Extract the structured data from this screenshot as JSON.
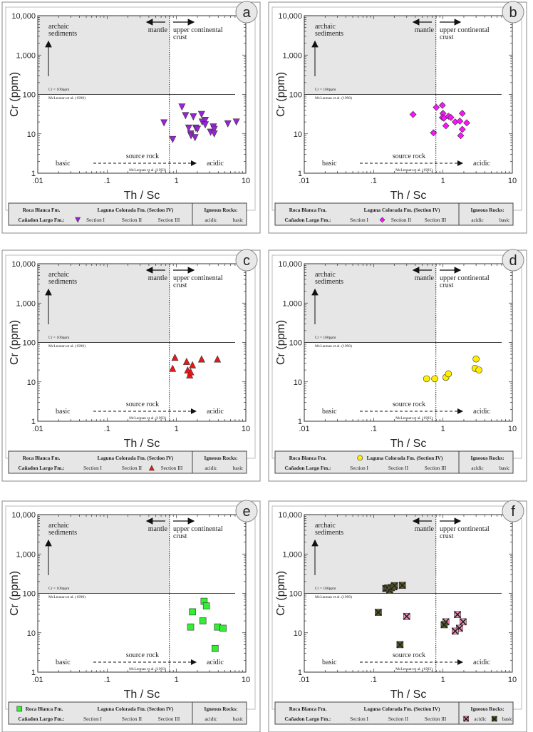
{
  "common": {
    "xlabel": "Th / Sc",
    "ylabel": "Cr (ppm)",
    "xticks": [
      ".01",
      ".1",
      "1",
      "10"
    ],
    "yticks": [
      "1",
      "10",
      "100",
      "1,000",
      "10,000"
    ],
    "archaic_1": "archaic",
    "archaic_2": "sediments",
    "mantle": "mantle",
    "ucc_1": "upper continental",
    "ucc_2": "crust",
    "cr_line": "Cr =  100ppm",
    "ref_1990": "McLennan et al. (1990)",
    "source_rock": "source rock",
    "basic": "basic",
    "acidic": "acidic",
    "ref_1993": "McLennan et al. (1993)",
    "legend": {
      "roca_blanca": "Roca Blanca Fm.",
      "laguna_colorada": "Laguna Colorada Fm. (Section IV)",
      "igneous": "Igneous Rocks:",
      "canadon_largo": "Cañadon Largo Fm.:",
      "section_i": "Section I",
      "section_ii": "Section II",
      "section_iii": "Section III",
      "acidic": "acidic",
      "basic": "basic"
    }
  },
  "chart_data": [
    {
      "type": "scatter",
      "panel": "a",
      "title": "",
      "xlabel": "Th / Sc",
      "ylabel": "Cr (ppm)",
      "xscale": "log",
      "yscale": "log",
      "xlim": [
        0.01,
        10
      ],
      "ylim": [
        1,
        10000
      ],
      "series": [
        {
          "name": "Section I",
          "legend_key": "section_i",
          "marker": "triangle-down",
          "color": "#9a22d8",
          "points": [
            [
              0.66,
              19
            ],
            [
              0.88,
              7.2
            ],
            [
              1.2,
              48
            ],
            [
              1.35,
              29
            ],
            [
              1.5,
              14
            ],
            [
              1.6,
              10
            ],
            [
              1.62,
              9
            ],
            [
              1.75,
              27
            ],
            [
              1.85,
              8
            ],
            [
              1.9,
              14
            ],
            [
              2.0,
              13
            ],
            [
              2.3,
              31
            ],
            [
              2.35,
              20
            ],
            [
              2.6,
              22
            ],
            [
              2.6,
              17
            ],
            [
              3.1,
              11
            ],
            [
              3.4,
              15
            ],
            [
              3.5,
              13
            ],
            [
              3.5,
              10
            ],
            [
              5.5,
              18
            ],
            [
              7.3,
              20
            ]
          ]
        }
      ]
    },
    {
      "type": "scatter",
      "panel": "b",
      "title": "",
      "xlabel": "Th / Sc",
      "ylabel": "Cr (ppm)",
      "xscale": "log",
      "yscale": "log",
      "xlim": [
        0.01,
        10
      ],
      "ylim": [
        1,
        10000
      ],
      "series": [
        {
          "name": "Section II",
          "legend_key": "section_ii",
          "marker": "diamond",
          "color": "#ff10ff",
          "points": [
            [
              0.37,
              31
            ],
            [
              0.73,
              10.6
            ],
            [
              0.8,
              47
            ],
            [
              0.98,
              53
            ],
            [
              1.0,
              33
            ],
            [
              0.98,
              26
            ],
            [
              1.03,
              25
            ],
            [
              1.1,
              16
            ],
            [
              1.2,
              28
            ],
            [
              1.3,
              26
            ],
            [
              1.5,
              20
            ],
            [
              1.75,
              21
            ],
            [
              1.9,
              33
            ],
            [
              1.9,
              13
            ],
            [
              1.8,
              9
            ],
            [
              2.2,
              19
            ]
          ]
        }
      ]
    },
    {
      "type": "scatter",
      "panel": "c",
      "title": "",
      "xlabel": "Th / Sc",
      "ylabel": "Cr (ppm)",
      "xscale": "log",
      "yscale": "log",
      "xlim": [
        0.01,
        10
      ],
      "ylim": [
        1,
        10000
      ],
      "series": [
        {
          "name": "Section III",
          "legend_key": "section_iii",
          "marker": "triangle-up",
          "color": "#ee1515",
          "points": [
            [
              0.88,
              22
            ],
            [
              0.95,
              42
            ],
            [
              1.4,
              33
            ],
            [
              1.45,
              20
            ],
            [
              1.55,
              15
            ],
            [
              1.6,
              18
            ],
            [
              1.7,
              27
            ],
            [
              2.3,
              38
            ],
            [
              3.9,
              38
            ]
          ]
        }
      ]
    },
    {
      "type": "scatter",
      "panel": "d",
      "title": "",
      "xlabel": "Th / Sc",
      "ylabel": "Cr (ppm)",
      "xscale": "log",
      "yscale": "log",
      "xlim": [
        0.01,
        10
      ],
      "ylim": [
        1,
        10000
      ],
      "series": [
        {
          "name": "Laguna Colorada Fm. (Section IV)",
          "legend_key": "laguna_colorada",
          "marker": "circle",
          "color": "#ffee00",
          "points": [
            [
              0.58,
              12
            ],
            [
              0.76,
              12
            ],
            [
              1.1,
              13
            ],
            [
              1.2,
              16
            ],
            [
              2.9,
              22
            ],
            [
              3.0,
              38
            ],
            [
              3.3,
              20
            ]
          ]
        }
      ]
    },
    {
      "type": "scatter",
      "panel": "e",
      "title": "",
      "xlabel": "Th / Sc",
      "ylabel": "Cr (ppm)",
      "xscale": "log",
      "yscale": "log",
      "xlim": [
        0.01,
        10
      ],
      "ylim": [
        1,
        10000
      ],
      "series": [
        {
          "name": "Roca Blanca Fm.",
          "legend_key": "roca_blanca",
          "marker": "square",
          "color": "#33ee33",
          "points": [
            [
              1.6,
              14
            ],
            [
              1.7,
              34
            ],
            [
              2.4,
              20
            ],
            [
              2.5,
              63
            ],
            [
              2.7,
              48
            ],
            [
              3.6,
              4
            ],
            [
              3.9,
              14
            ],
            [
              4.7,
              13
            ]
          ]
        }
      ]
    },
    {
      "type": "scatter",
      "panel": "f",
      "title": "",
      "xlabel": "Th / Sc",
      "ylabel": "Cr (ppm)",
      "xscale": "log",
      "yscale": "log",
      "xlim": [
        0.01,
        10
      ],
      "ylim": [
        1,
        10000
      ],
      "series": [
        {
          "name": "acidic",
          "legend_key": "acidic",
          "marker": "cross",
          "color": "#ff8cc0",
          "points": [
            [
              0.3,
              26
            ],
            [
              1.1,
              19
            ],
            [
              1.62,
              29
            ],
            [
              1.95,
              19
            ],
            [
              1.73,
              13
            ],
            [
              1.5,
              11
            ]
          ]
        },
        {
          "name": "basic",
          "legend_key": "basic",
          "marker": "cross",
          "color": "#5c5a22",
          "points": [
            [
              0.15,
              133
            ],
            [
              0.16,
              137
            ],
            [
              0.17,
              120
            ],
            [
              0.18,
              140
            ],
            [
              0.195,
              147
            ],
            [
              0.2,
              157
            ],
            [
              0.26,
              160
            ],
            [
              0.117,
              33
            ],
            [
              0.24,
              5
            ],
            [
              1.04,
              16
            ]
          ]
        }
      ]
    }
  ]
}
